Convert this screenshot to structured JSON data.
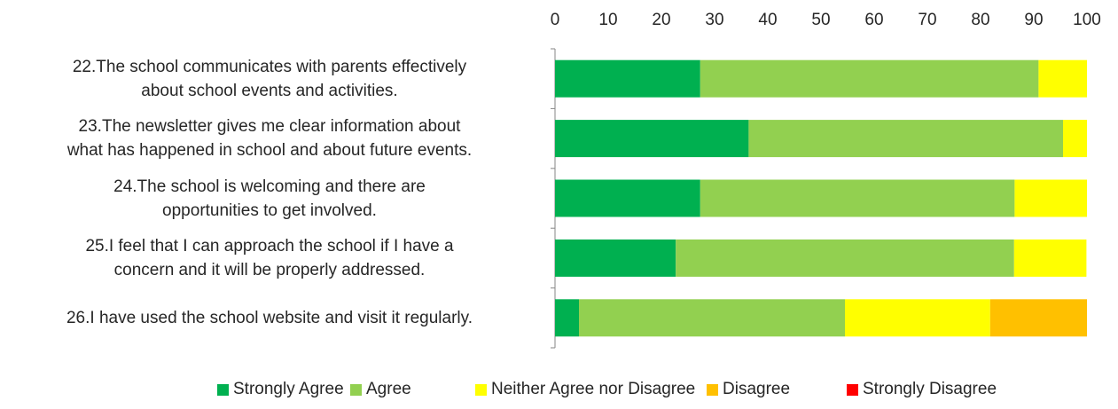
{
  "chart_data": {
    "type": "bar",
    "orientation": "horizontal",
    "stacked": true,
    "xlim": [
      0,
      100
    ],
    "ticks": [
      "0",
      "10",
      "20",
      "30",
      "40",
      "50",
      "60",
      "70",
      "80",
      "90",
      "100"
    ],
    "axis_position": "top",
    "grid": false,
    "legend_position": "bottom",
    "categories": [
      [
        "22.The school communicates with parents effectively",
        "about school events and activities."
      ],
      [
        "23.The newsletter gives me clear information about",
        "what has happened in school and about future events."
      ],
      [
        "24.The school is welcoming and there are",
        "opportunities to get involved."
      ],
      [
        "25.I feel that I can approach the school if I have a",
        "concern and it will be properly addressed."
      ],
      [
        "26.I have used the school website and visit it regularly."
      ]
    ],
    "series": [
      {
        "name": "Strongly Agree",
        "color": "#00b050",
        "values": [
          27.3,
          36.4,
          27.3,
          22.7,
          4.5
        ]
      },
      {
        "name": "Agree",
        "color": "#92d050",
        "values": [
          63.6,
          59.1,
          59.1,
          63.6,
          50.0
        ]
      },
      {
        "name": "Neither Agree nor Disagree",
        "color": "#ffff00",
        "values": [
          9.1,
          4.5,
          13.6,
          13.6,
          27.3
        ]
      },
      {
        "name": "Disagree",
        "color": "#ffc000",
        "values": [
          0,
          0,
          0,
          0,
          18.2
        ]
      },
      {
        "name": "Strongly Disagree",
        "color": "#ff0000",
        "values": [
          0,
          0,
          0,
          0,
          0
        ]
      }
    ]
  }
}
